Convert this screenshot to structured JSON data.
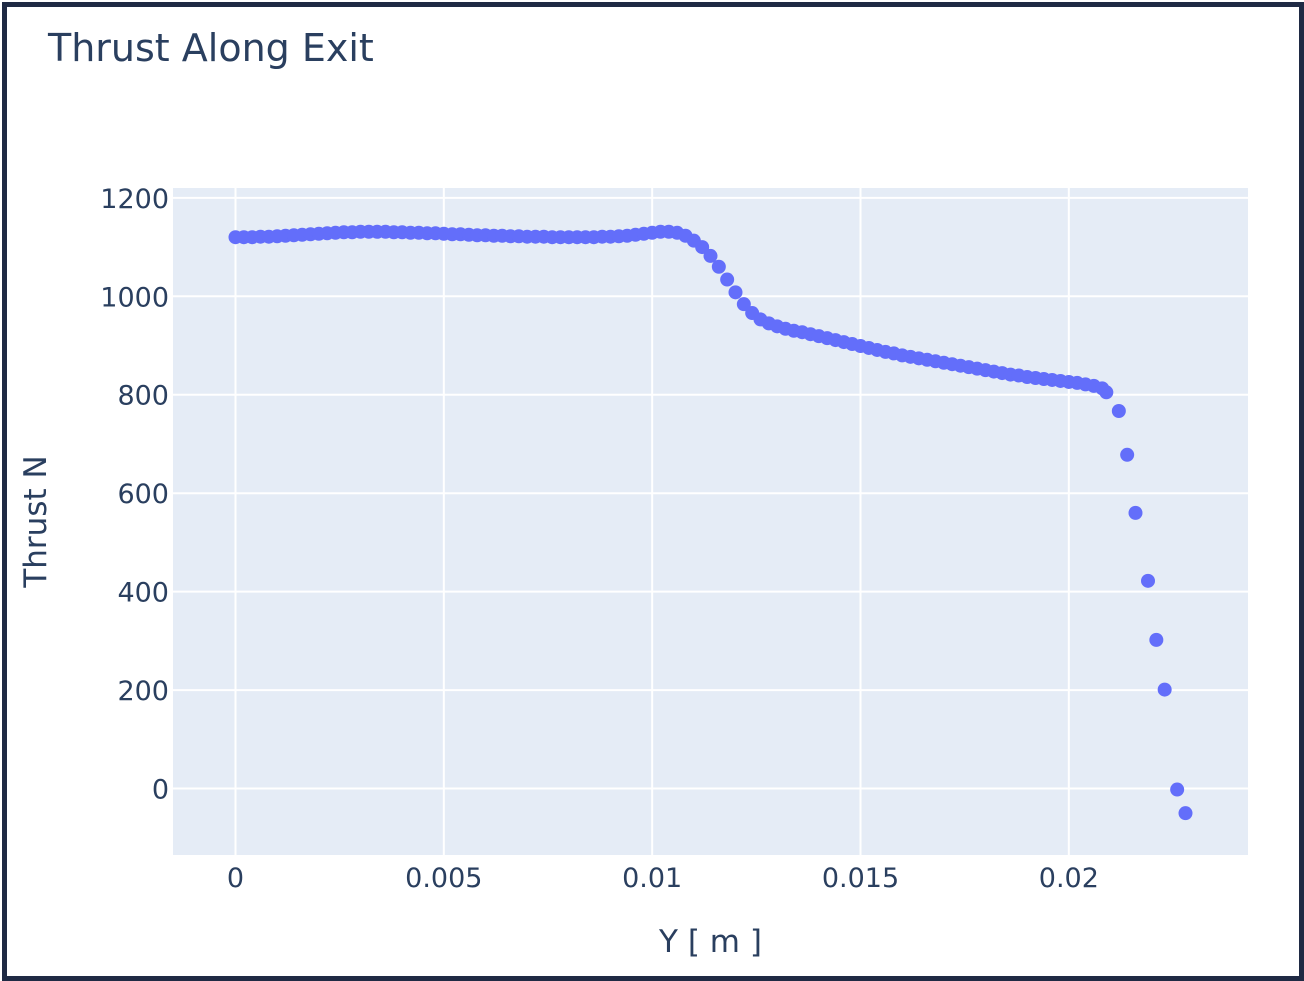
{
  "chart_data": {
    "type": "scatter",
    "title": "Thrust Along Exit",
    "xlabel": "Y [ m ]",
    "ylabel": "Thrust N",
    "xlim": [
      -0.0015,
      0.0243
    ],
    "ylim": [
      -135,
      1220
    ],
    "xticks": [
      0,
      0.005,
      0.01,
      0.015,
      0.02
    ],
    "xtick_labels": [
      "0",
      "0.005",
      "0.01",
      "0.015",
      "0.02"
    ],
    "yticks": [
      0,
      200,
      400,
      600,
      800,
      1000,
      1200
    ],
    "ytick_labels": [
      "0",
      "200",
      "400",
      "600",
      "800",
      "1000",
      "1200"
    ],
    "grid": true,
    "marker_color": "#636efa",
    "plot_bg": "#e5ecf6",
    "series": [
      {
        "x": [
          0,
          0.0002,
          0.0004,
          0.0006,
          0.0008,
          0.001,
          0.0012,
          0.0014,
          0.0016,
          0.0018,
          0.002,
          0.0022,
          0.0024,
          0.0026,
          0.0028,
          0.003,
          0.0032,
          0.0034,
          0.0036,
          0.0038,
          0.004,
          0.0042,
          0.0044,
          0.0046,
          0.0048,
          0.005,
          0.0052,
          0.0054,
          0.0056,
          0.0058,
          0.006,
          0.0062,
          0.0064,
          0.0066,
          0.0068,
          0.007,
          0.0072,
          0.0074,
          0.0076,
          0.0078,
          0.008,
          0.0082,
          0.0084,
          0.0086,
          0.0088,
          0.009,
          0.0092,
          0.0094,
          0.0096,
          0.0098,
          0.01,
          0.0102,
          0.0104,
          0.0106,
          0.0108,
          0.011,
          0.0112,
          0.0114,
          0.0116,
          0.0118,
          0.012,
          0.0122,
          0.0124,
          0.0126,
          0.0128,
          0.013,
          0.0132,
          0.0134,
          0.0136,
          0.0138,
          0.014,
          0.0142,
          0.0144,
          0.0146,
          0.0148,
          0.015,
          0.0152,
          0.0154,
          0.0156,
          0.0158,
          0.016,
          0.0162,
          0.0164,
          0.0166,
          0.0168,
          0.017,
          0.0172,
          0.0174,
          0.0176,
          0.0178,
          0.018,
          0.0182,
          0.0184,
          0.0186,
          0.0188,
          0.019,
          0.0192,
          0.0194,
          0.0196,
          0.0198,
          0.02,
          0.0202,
          0.0204,
          0.0206,
          0.0208,
          0.0209,
          0.0212,
          0.0214,
          0.0216,
          0.0219,
          0.0221,
          0.0223,
          0.0226,
          0.0228
        ],
        "y": [
          1120,
          1120,
          1120,
          1121,
          1121,
          1122,
          1123,
          1124,
          1125,
          1126,
          1127,
          1128,
          1129,
          1130,
          1130,
          1131,
          1131,
          1131,
          1131,
          1130,
          1130,
          1129,
          1129,
          1128,
          1128,
          1127,
          1126,
          1126,
          1125,
          1124,
          1124,
          1123,
          1123,
          1122,
          1122,
          1121,
          1121,
          1121,
          1120,
          1120,
          1120,
          1120,
          1120,
          1120,
          1121,
          1121,
          1122,
          1123,
          1125,
          1127,
          1129,
          1131,
          1131,
          1129,
          1123,
          1113,
          1100,
          1082,
          1060,
          1034,
          1008,
          984,
          966,
          953,
          945,
          939,
          934,
          930,
          927,
          923,
          919,
          915,
          911,
          907,
          903,
          899,
          895,
          891,
          887,
          884,
          880,
          877,
          874,
          871,
          868,
          865,
          862,
          859,
          856,
          853,
          850,
          847,
          844,
          841,
          839,
          836,
          834,
          832,
          830,
          828,
          826,
          824,
          821,
          818,
          813,
          805,
          767,
          678,
          560,
          422,
          302,
          201,
          -2,
          -50
        ]
      }
    ]
  }
}
